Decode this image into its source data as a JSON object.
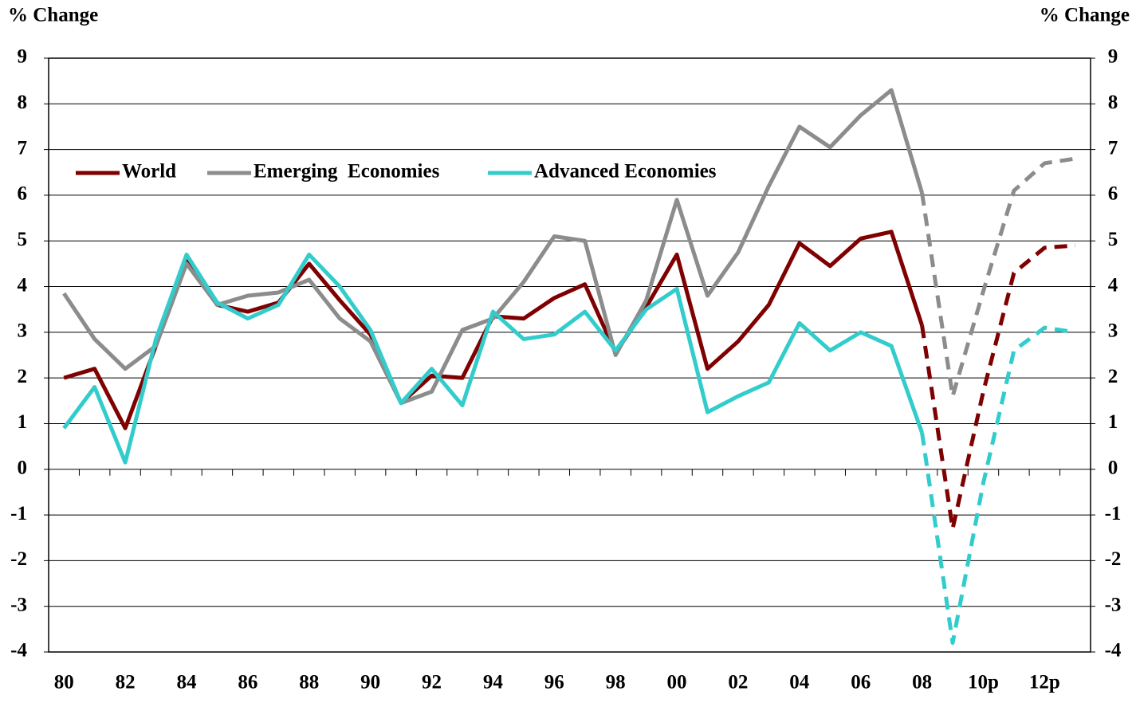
{
  "chart_data": {
    "type": "line",
    "y_axis_label": "% Change",
    "y2_axis_label": "% Change",
    "categories": [
      "80",
      null,
      "82",
      null,
      "84",
      null,
      "86",
      null,
      "88",
      null,
      "90",
      null,
      "92",
      null,
      "94",
      null,
      "96",
      null,
      "98",
      null,
      "00",
      null,
      "02",
      null,
      "04",
      null,
      "06",
      null,
      "08",
      null,
      "10p",
      null,
      "12p",
      null
    ],
    "dashed_from": 28,
    "series": [
      {
        "name": "World",
        "color": "#7f0000",
        "values": [
          2.0,
          2.2,
          0.9,
          2.7,
          4.6,
          3.6,
          3.45,
          3.65,
          4.5,
          3.7,
          2.95,
          1.45,
          2.05,
          2.0,
          3.35,
          3.3,
          3.75,
          4.05,
          2.55,
          3.55,
          4.7,
          2.2,
          2.8,
          3.6,
          4.95,
          4.45,
          5.05,
          5.2,
          3.15,
          -1.3,
          1.7,
          4.3,
          4.85,
          4.9
        ]
      },
      {
        "name": "Emerging  Economies",
        "color": "#8c8c8c",
        "values": [
          3.85,
          2.85,
          2.2,
          2.7,
          4.5,
          3.6,
          3.8,
          3.87,
          4.15,
          3.3,
          2.8,
          1.45,
          1.7,
          3.05,
          3.3,
          4.1,
          5.1,
          5.0,
          2.5,
          3.7,
          5.9,
          3.8,
          4.75,
          6.2,
          7.5,
          7.05,
          7.75,
          8.3,
          6.05,
          1.6,
          3.9,
          6.1,
          6.7,
          6.8
        ]
      },
      {
        "name": "Advanced Economies",
        "color": "#33cccc",
        "values": [
          0.9,
          1.8,
          0.15,
          2.85,
          4.7,
          3.65,
          3.3,
          3.6,
          4.7,
          4.0,
          3.05,
          1.45,
          2.2,
          1.4,
          3.45,
          2.85,
          2.95,
          3.45,
          2.6,
          3.5,
          3.95,
          1.25,
          1.6,
          1.9,
          3.2,
          2.6,
          3.0,
          2.7,
          0.8,
          -3.8,
          -0.3,
          2.6,
          3.1,
          3.0
        ]
      }
    ],
    "ylim": [
      -4,
      9
    ],
    "yticks": [
      -4,
      -3,
      -2,
      -1,
      0,
      1,
      2,
      3,
      4,
      5,
      6,
      7,
      8,
      9
    ],
    "y2lim": [
      -4,
      9
    ],
    "y2ticks": [
      -4,
      -3,
      -2,
      -1,
      0,
      1,
      2,
      3,
      4,
      5,
      6,
      7,
      8,
      9
    ],
    "grid": true
  }
}
